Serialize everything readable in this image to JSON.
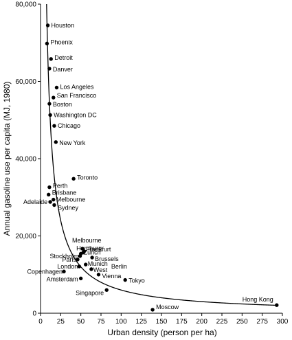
{
  "chart_data": {
    "type": "scatter",
    "xlabel": "Urban density (person per ha)",
    "ylabel": "Annual gasoline use per capita (MJ, 1980)",
    "xlim": [
      0,
      300
    ],
    "ylim": [
      0,
      80000
    ],
    "x_ticks": [
      "0",
      "25",
      "50",
      "75",
      "100",
      "125",
      "150",
      "175",
      "200",
      "225",
      "250",
      "275",
      "300"
    ],
    "y_ticks": [
      "0",
      "20,000",
      "40,000",
      "60,000",
      "80,000"
    ],
    "grid": false,
    "fitted_curve": "inverse",
    "points": [
      {
        "label": "Houston",
        "x": 9,
        "y": 74500
      },
      {
        "label": "Phoenix",
        "x": 8,
        "y": 69800
      },
      {
        "label": "Detroit",
        "x": 13,
        "y": 65800
      },
      {
        "label": "Danver",
        "x": 11,
        "y": 63300
      },
      {
        "label": "Los Angeles",
        "x": 20,
        "y": 58400
      },
      {
        "label": "San Francisco",
        "x": 16,
        "y": 55800
      },
      {
        "label": "Boston",
        "x": 11,
        "y": 54200
      },
      {
        "label": "Washington DC",
        "x": 12,
        "y": 51300
      },
      {
        "label": "Chicago",
        "x": 17,
        "y": 48500
      },
      {
        "label": "New York",
        "x": 19,
        "y": 44300
      },
      {
        "label": "Toronto",
        "x": 41,
        "y": 34800
      },
      {
        "label": "Perth",
        "x": 11,
        "y": 32600
      },
      {
        "label": "Brisbane",
        "x": 10,
        "y": 30700
      },
      {
        "label": "Melbourne",
        "x": 16,
        "y": 29400
      },
      {
        "label": "Adelaide",
        "x": 12,
        "y": 28800
      },
      {
        "label": "Sydney",
        "x": 17,
        "y": 28000
      },
      {
        "label": "Melbourne",
        "x": 52,
        "y": 16700
      },
      {
        "label": "Hamburg",
        "x": 53,
        "y": 15700
      },
      {
        "label": "Frankfurt",
        "x": 54,
        "y": 16000
      },
      {
        "label": "Zurich",
        "x": 50,
        "y": 15400
      },
      {
        "label": "Stockholm",
        "x": 49,
        "y": 14800
      },
      {
        "label": "Brussels",
        "x": 64,
        "y": 14400
      },
      {
        "label": "Paris",
        "x": 46,
        "y": 13900
      },
      {
        "label": "Munich",
        "x": 56,
        "y": 12600
      },
      {
        "label": "London",
        "x": 48,
        "y": 12100
      },
      {
        "label": "West Berlin",
        "x": 63,
        "y": 11400
      },
      {
        "label": "Copenhagen",
        "x": 29,
        "y": 10800
      },
      {
        "label": "Vienna",
        "x": 72,
        "y": 10000
      },
      {
        "label": "Amsterdam",
        "x": 50,
        "y": 9000
      },
      {
        "label": "Tokyo",
        "x": 105,
        "y": 8600
      },
      {
        "label": "Singapore",
        "x": 82,
        "y": 6000
      },
      {
        "label": "Moscow",
        "x": 139,
        "y": 900
      },
      {
        "label": "Hong Kong",
        "x": 293,
        "y": 2100
      }
    ]
  }
}
